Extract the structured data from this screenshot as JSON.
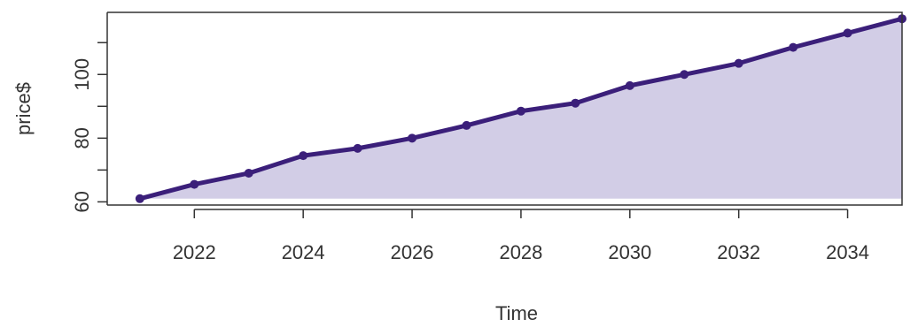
{
  "chart_data": {
    "type": "area",
    "xlabel": "Time",
    "ylabel": "price$",
    "x": [
      2021,
      2022,
      2023,
      2024,
      2025,
      2026,
      2027,
      2028,
      2029,
      2030,
      2031,
      2032,
      2033,
      2034,
      2035
    ],
    "series": [
      {
        "values": [
          61,
          65.5,
          69,
          74.5,
          76.8,
          80,
          84,
          88.5,
          91,
          96.5,
          100,
          103.5,
          108.5,
          113,
          117.5
        ]
      }
    ],
    "xlim": [
      2020.4,
      2035
    ],
    "ylim": [
      59,
      119.5
    ],
    "xticks": [
      2022,
      2024,
      2026,
      2028,
      2030,
      2032,
      2034
    ],
    "xtick_labels": [
      "2022",
      "2024",
      "2026",
      "2028",
      "2030",
      "2032",
      "2034"
    ],
    "yticks": [
      60,
      70,
      80,
      90,
      100,
      110
    ],
    "ytick_labels": [
      {
        "value": 60,
        "label": "60"
      },
      {
        "value": 80,
        "label": "80"
      },
      {
        "value": 100,
        "label": "100"
      }
    ],
    "grid": false,
    "legend": "none",
    "colors": {
      "line": "#3b1f7a",
      "fill": "#d2cde6",
      "axis": "#333333"
    }
  }
}
